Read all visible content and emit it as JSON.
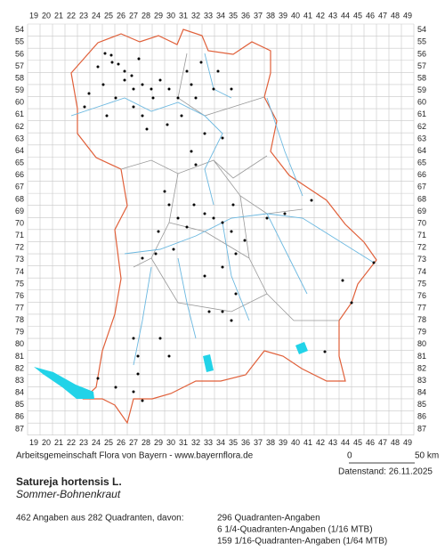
{
  "map": {
    "columns": [
      "19",
      "20",
      "21",
      "22",
      "23",
      "24",
      "25",
      "26",
      "27",
      "28",
      "29",
      "30",
      "31",
      "32",
      "33",
      "34",
      "35",
      "36",
      "37",
      "38",
      "39",
      "40",
      "41",
      "42",
      "43",
      "44",
      "45",
      "46",
      "47",
      "48",
      "49"
    ],
    "rows": [
      "54",
      "55",
      "56",
      "57",
      "58",
      "59",
      "60",
      "61",
      "62",
      "63",
      "64",
      "65",
      "66",
      "67",
      "68",
      "69",
      "70",
      "71",
      "72",
      "73",
      "74",
      "75",
      "76",
      "77",
      "78",
      "79",
      "80",
      "81",
      "82",
      "83",
      "84",
      "85",
      "86",
      "87"
    ]
  },
  "credit": "Arbeitsgemeinschaft Flora von Bayern - www.bayernflora.de",
  "scale": {
    "start": "0",
    "end": "50 km"
  },
  "date": "Datenstand: 26.11.2025",
  "species": {
    "scientific": "Satureja hortensis L.",
    "common": "Sommer-Bohnenkraut"
  },
  "summary": "462 Angaben aus 282 Quadranten, davon:",
  "breakdown": [
    "296 Quadranten-Angaben",
    "6 1/4-Quadranten-Angaben (1/16 MTB)",
    "159 1/16-Quadranten-Angaben (1/64 MTB)"
  ]
}
